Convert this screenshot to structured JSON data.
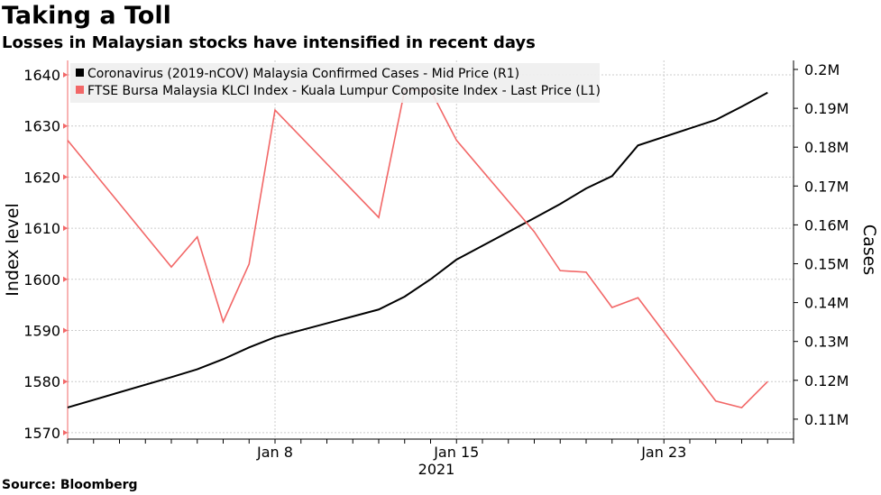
{
  "title": "Taking a Toll",
  "subtitle": "Losses in Malaysian stocks have intensified in recent days",
  "source": "Source: Bloomberg",
  "chart_data": {
    "type": "line",
    "title": "Taking a Toll",
    "ylabel_left": "Index level",
    "ylabel_right": "Cases",
    "xlabel": "2021",
    "x_ticks": [
      {
        "label": "Jan 8",
        "day": 8
      },
      {
        "label": "Jan 15",
        "day": 15
      },
      {
        "label": "Jan 23",
        "day": 23
      }
    ],
    "x_range_days": [
      0,
      28
    ],
    "x_note": "day 0 = Dec 31, 2020",
    "y_left": {
      "range": [
        1569,
        1643
      ],
      "ticks": [
        1570,
        1580,
        1590,
        1600,
        1610,
        1620,
        1630,
        1640
      ]
    },
    "y_right": {
      "range": [
        104000,
        202000
      ],
      "ticks": [
        110000,
        120000,
        130000,
        140000,
        150000,
        160000,
        170000,
        180000,
        190000,
        200000
      ],
      "tick_labels": [
        "0.11M",
        "0.12M",
        "0.13M",
        "0.14M",
        "0.15M",
        "0.16M",
        "0.17M",
        "0.18M",
        "0.19M",
        "0.2M"
      ]
    },
    "grid": true,
    "legend_position": "top-left",
    "series": [
      {
        "name": "Coronavirus (2019-nCOV) Malaysia Confirmed Cases - Mid Price (R1)",
        "axis": "right",
        "color": "#000000",
        "x": [
          0,
          4,
          5,
          6,
          7,
          8,
          12,
          13,
          14,
          15,
          18,
          19,
          20,
          21,
          22,
          25,
          26,
          27
        ],
        "values": [
          113010,
          120818,
          122845,
          125438,
          128465,
          131108,
          138224,
          141533,
          146000,
          151066,
          161740,
          165371,
          169379,
          172549,
          180455,
          187014,
          190434,
          194019
        ]
      },
      {
        "name": "FTSE Bursa Malaysia KLCI Index - Kuala Lumpur Composite Index - Last Price (L1)",
        "axis": "left",
        "color": "#f26767",
        "x": [
          0,
          4,
          5,
          6,
          7,
          8,
          12,
          13,
          14,
          15,
          18,
          19,
          20,
          21,
          22,
          25,
          26,
          27
        ],
        "values": [
          1627.2,
          1602.4,
          1608.3,
          1591.7,
          1603.0,
          1633.1,
          1612.1,
          1637.0,
          1637.0,
          1627.2,
          1609.3,
          1601.7,
          1601.4,
          1594.5,
          1596.4,
          1576.2,
          1574.9,
          1580.0
        ]
      }
    ]
  }
}
